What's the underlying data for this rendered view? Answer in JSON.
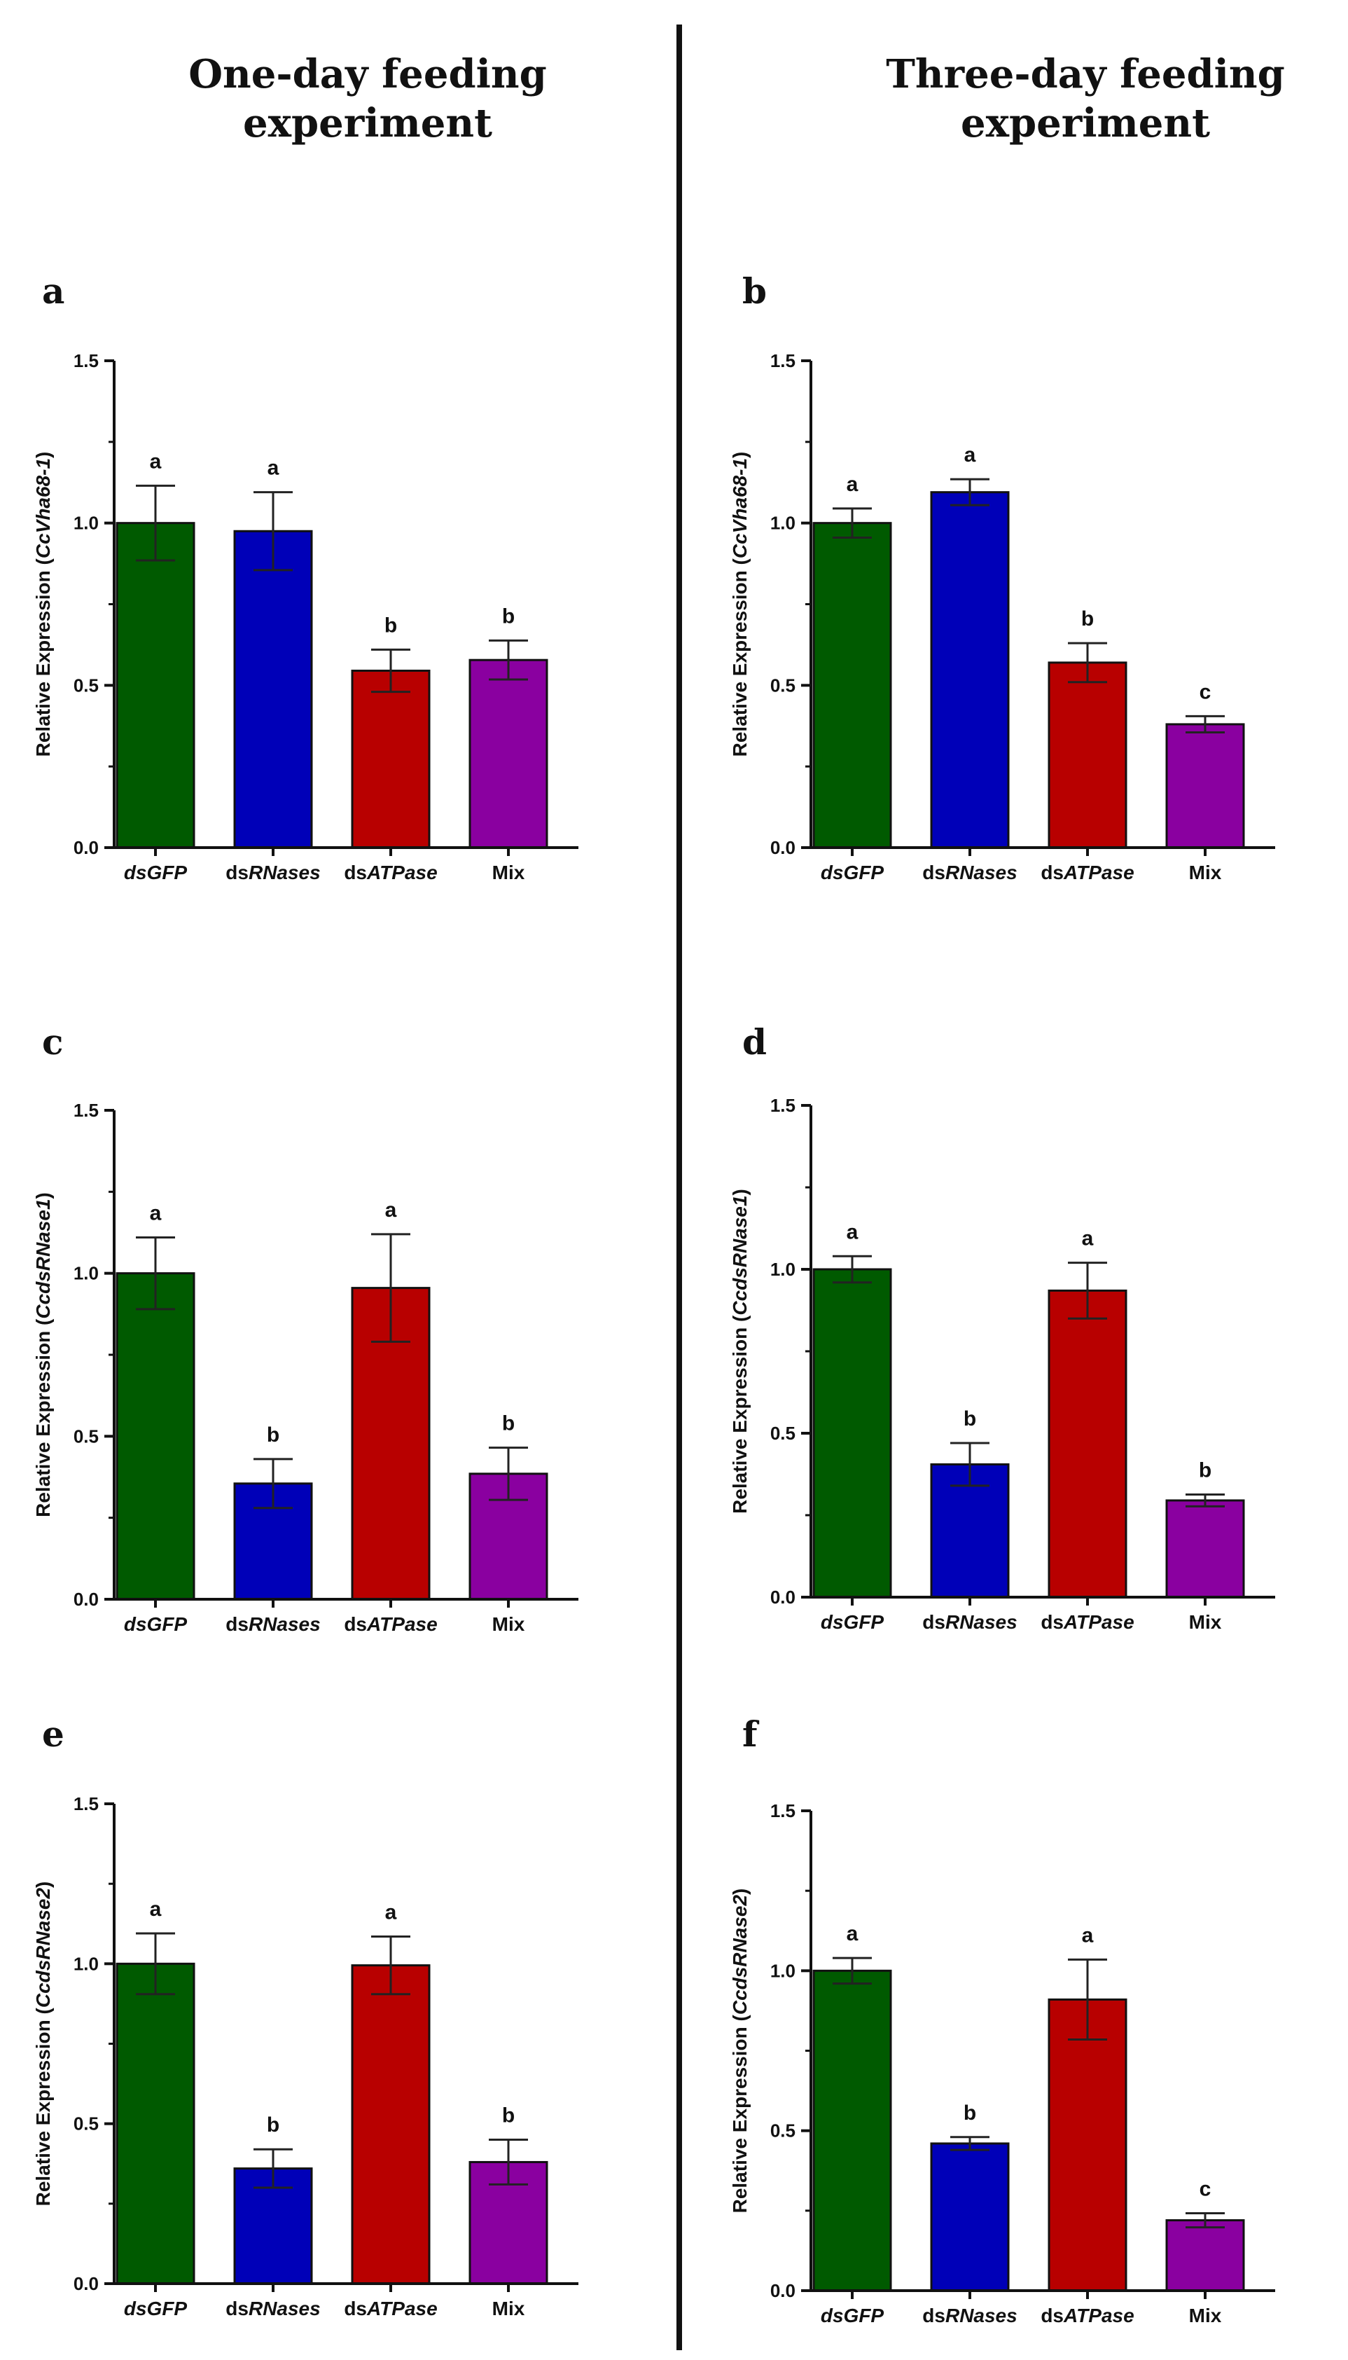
{
  "titles": {
    "left": [
      "One-day feeding",
      "experiment"
    ],
    "right": [
      "Three-day feeding",
      "experiment"
    ]
  },
  "colors": {
    "divider": "#111111",
    "axis": "#111111",
    "errorbar": "#222222"
  },
  "chart_data": [
    {
      "type": "bar",
      "panel": "a",
      "categories": [
        "dsGFP",
        "dsRNases",
        "dsATPase",
        "Mix"
      ],
      "values": [
        1.0,
        0.975,
        0.545,
        0.578
      ],
      "errors": [
        0.115,
        0.12,
        0.065,
        0.06
      ],
      "significance": [
        "a",
        "a",
        "b",
        "b"
      ],
      "colors": [
        "#005a00",
        "#0000b8",
        "#b80000",
        "#8a00a0"
      ],
      "ylabel": "Relative Expression (CcVha68-1)",
      "ylabel_plain": "Relative Expression (",
      "ylabel_gene": "CcVha68-1",
      "ylabel_close": ")",
      "ylim": [
        0,
        1.5
      ],
      "yticks": [
        "0.0",
        "0.5",
        "1.0",
        "1.5"
      ]
    },
    {
      "type": "bar",
      "panel": "b",
      "categories": [
        "dsGFP",
        "dsRNases",
        "dsATPase",
        "Mix"
      ],
      "values": [
        1.0,
        1.095,
        0.57,
        0.38
      ],
      "errors": [
        0.045,
        0.04,
        0.06,
        0.025
      ],
      "significance": [
        "a",
        "a",
        "b",
        "c"
      ],
      "colors": [
        "#005a00",
        "#0000b8",
        "#b80000",
        "#8a00a0"
      ],
      "ylabel": "Relative Expression (CcVha68-1)",
      "ylabel_plain": "Relative Expression (",
      "ylabel_gene": "CcVha68-1",
      "ylabel_close": ")",
      "ylim": [
        0,
        1.5
      ],
      "yticks": [
        "0.0",
        "0.5",
        "1.0",
        "1.5"
      ]
    },
    {
      "type": "bar",
      "panel": "c",
      "categories": [
        "dsGFP",
        "dsRNases",
        "dsATPase",
        "Mix"
      ],
      "values": [
        1.0,
        0.355,
        0.955,
        0.385
      ],
      "errors": [
        0.11,
        0.075,
        0.165,
        0.08
      ],
      "significance": [
        "a",
        "b",
        "a",
        "b"
      ],
      "colors": [
        "#005a00",
        "#0000b8",
        "#b80000",
        "#8a00a0"
      ],
      "ylabel": "Relative Expression (CcdsRNase1)",
      "ylabel_plain": "Relative Expression (",
      "ylabel_gene": "CcdsRNase1",
      "ylabel_close": ")",
      "ylim": [
        0,
        1.5
      ],
      "yticks": [
        "0.0",
        "0.5",
        "1.0",
        "1.5"
      ]
    },
    {
      "type": "bar",
      "panel": "d",
      "categories": [
        "dsGFP",
        "dsRNases",
        "dsATPase",
        "Mix"
      ],
      "values": [
        1.0,
        0.405,
        0.935,
        0.295
      ],
      "errors": [
        0.04,
        0.065,
        0.085,
        0.018
      ],
      "significance": [
        "a",
        "b",
        "a",
        "b"
      ],
      "colors": [
        "#005a00",
        "#0000b8",
        "#b80000",
        "#8a00a0"
      ],
      "ylabel": "Relative Expression (CcdsRNase1)",
      "ylabel_plain": "Relative Expression (",
      "ylabel_gene": "CcdsRNase1",
      "ylabel_close": ")",
      "ylim": [
        0,
        1.5
      ],
      "yticks": [
        "0.0",
        "0.5",
        "1.0",
        "1.5"
      ]
    },
    {
      "type": "bar",
      "panel": "e",
      "categories": [
        "dsGFP",
        "dsRNases",
        "dsATPase",
        "Mix"
      ],
      "values": [
        1.0,
        0.36,
        0.995,
        0.38
      ],
      "errors": [
        0.095,
        0.06,
        0.09,
        0.07
      ],
      "significance": [
        "a",
        "b",
        "a",
        "b"
      ],
      "colors": [
        "#005a00",
        "#0000b8",
        "#b80000",
        "#8a00a0"
      ],
      "ylabel": "Relative Expression (CcdsRNase2)",
      "ylabel_plain": "Relative Expression (",
      "ylabel_gene": "CcdsRNase2",
      "ylabel_close": ")",
      "ylim": [
        0,
        1.5
      ],
      "yticks": [
        "0.0",
        "0.5",
        "1.0",
        "1.5"
      ]
    },
    {
      "type": "bar",
      "panel": "f",
      "categories": [
        "dsGFP",
        "dsRNases",
        "dsATPase",
        "Mix"
      ],
      "values": [
        1.0,
        0.46,
        0.91,
        0.22
      ],
      "errors": [
        0.04,
        0.02,
        0.125,
        0.022
      ],
      "significance": [
        "a",
        "b",
        "a",
        "c"
      ],
      "colors": [
        "#005a00",
        "#0000b8",
        "#b80000",
        "#8a00a0"
      ],
      "ylabel": "Relative Expression (CcdsRNase2)",
      "ylabel_plain": "Relative Expression (",
      "ylabel_gene": "CcdsRNase2",
      "ylabel_close": ")",
      "ylim": [
        0,
        1.5
      ],
      "yticks": [
        "0.0",
        "0.5",
        "1.0",
        "1.5"
      ]
    }
  ]
}
